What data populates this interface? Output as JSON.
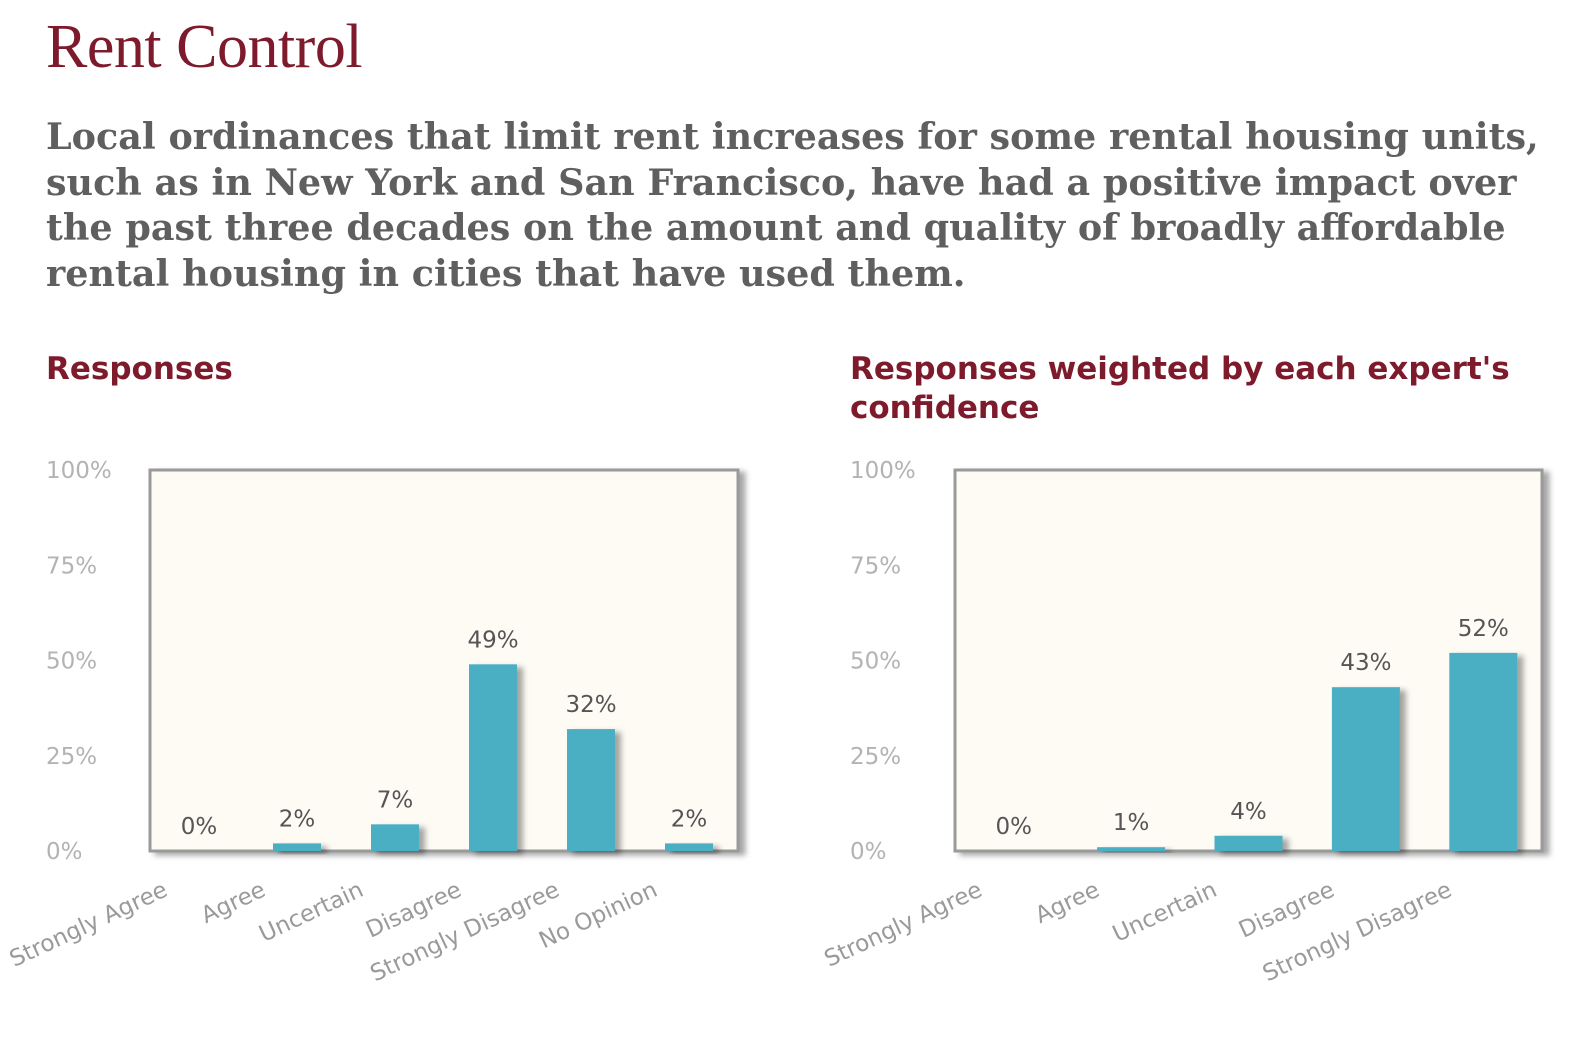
{
  "page": {
    "title": "Rent Control",
    "statement": "Local ordinances that limit rent increases for some rental housing units, such as in New York and San Francisco, have had a positive impact over the past three decades on the amount and quality of broadly affordable rental housing in cities that have used them."
  },
  "colors": {
    "bar": "#4bafc4",
    "plot_bg": "#fdfbf4",
    "frame": "#9a9a9a",
    "heading": "#7d1a2c"
  },
  "chart_data": [
    {
      "type": "bar",
      "title": "Responses",
      "categories": [
        "Strongly Agree",
        "Agree",
        "Uncertain",
        "Disagree",
        "Strongly Disagree",
        "No Opinion"
      ],
      "values": [
        0,
        2,
        7,
        49,
        32,
        2
      ],
      "data_labels": [
        "0%",
        "2%",
        "7%",
        "49%",
        "32%",
        "2%"
      ],
      "yticks": [
        "0%",
        "25%",
        "50%",
        "75%",
        "100%"
      ],
      "ylim": [
        0,
        100
      ],
      "grid": false
    },
    {
      "type": "bar",
      "title": "Responses weighted by each expert's confidence",
      "categories": [
        "Strongly Agree",
        "Agree",
        "Uncertain",
        "Disagree",
        "Strongly Disagree"
      ],
      "values": [
        0,
        1,
        4,
        43,
        52
      ],
      "data_labels": [
        "0%",
        "1%",
        "4%",
        "43%",
        "52%"
      ],
      "yticks": [
        "0%",
        "25%",
        "50%",
        "75%",
        "100%"
      ],
      "ylim": [
        0,
        100
      ],
      "grid": false
    }
  ]
}
